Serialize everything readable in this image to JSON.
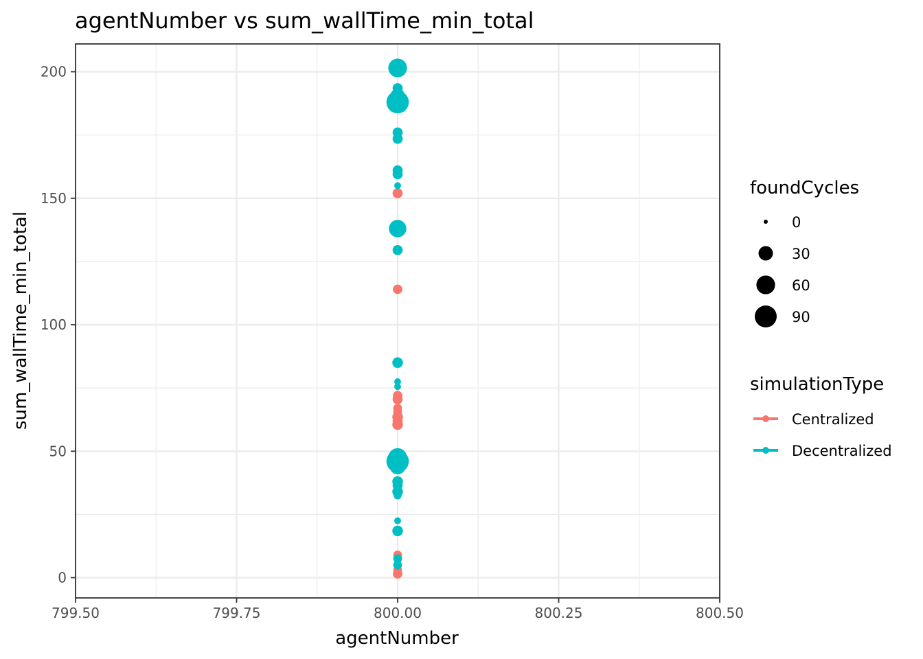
{
  "chart_data": {
    "type": "scatter",
    "title": "agentNumber  vs  sum_wallTime_min_total",
    "xlabel": "agentNumber",
    "ylabel": "sum_wallTime_min_total",
    "xlim": [
      799.5,
      800.5
    ],
    "ylim": [
      -8,
      211
    ],
    "x_ticks": [
      "799.50",
      "799.75",
      "800.00",
      "800.25",
      "800.50"
    ],
    "y_ticks": [
      "0",
      "50",
      "100",
      "150",
      "200"
    ],
    "grid": true,
    "legend_placement": "right",
    "size_legend": {
      "title": "foundCycles",
      "entries": [
        {
          "label": "0",
          "value": 0
        },
        {
          "label": "30",
          "value": 30
        },
        {
          "label": "60",
          "value": 60
        },
        {
          "label": "90",
          "value": 90
        }
      ]
    },
    "color_legend": {
      "title": "simulationType",
      "entries": [
        {
          "label": "Centralized",
          "color": "#F8766D"
        },
        {
          "label": "Decentralized",
          "color": "#00BFC4"
        }
      ]
    },
    "series": [
      {
        "name": "Centralized",
        "color": "#F8766D",
        "points": [
          {
            "x": 800,
            "y": 152,
            "size": 10
          },
          {
            "x": 800,
            "y": 114,
            "size": 8
          },
          {
            "x": 800,
            "y": 72,
            "size": 8
          },
          {
            "x": 800,
            "y": 70.5,
            "size": 10
          },
          {
            "x": 800,
            "y": 67,
            "size": 6
          },
          {
            "x": 800,
            "y": 65.5,
            "size": 6
          },
          {
            "x": 800,
            "y": 63.5,
            "size": 12
          },
          {
            "x": 800,
            "y": 62,
            "size": 10
          },
          {
            "x": 800,
            "y": 60.5,
            "size": 12
          },
          {
            "x": 800,
            "y": 9,
            "size": 6
          },
          {
            "x": 800,
            "y": 3,
            "size": 6
          },
          {
            "x": 800,
            "y": 1.5,
            "size": 8
          }
        ]
      },
      {
        "name": "Decentralized",
        "color": "#00BFC4",
        "points": [
          {
            "x": 800,
            "y": 201.5,
            "size": 60
          },
          {
            "x": 800,
            "y": 193.5,
            "size": 10
          },
          {
            "x": 800,
            "y": 190.5,
            "size": 30
          },
          {
            "x": 800,
            "y": 188,
            "size": 95
          },
          {
            "x": 800,
            "y": 176,
            "size": 10
          },
          {
            "x": 800,
            "y": 173.5,
            "size": 10
          },
          {
            "x": 800,
            "y": 161,
            "size": 10
          },
          {
            "x": 800,
            "y": 159.5,
            "size": 10
          },
          {
            "x": 800,
            "y": 155,
            "size": 2
          },
          {
            "x": 800,
            "y": 138,
            "size": 50
          },
          {
            "x": 800,
            "y": 129.5,
            "size": 10
          },
          {
            "x": 800,
            "y": 85,
            "size": 12
          },
          {
            "x": 800,
            "y": 77.5,
            "size": 2
          },
          {
            "x": 800,
            "y": 75.5,
            "size": 2
          },
          {
            "x": 800,
            "y": 47.5,
            "size": 60
          },
          {
            "x": 800,
            "y": 46,
            "size": 95
          },
          {
            "x": 800,
            "y": 44,
            "size": 40
          },
          {
            "x": 800,
            "y": 38,
            "size": 12
          },
          {
            "x": 800,
            "y": 36.5,
            "size": 10
          },
          {
            "x": 800,
            "y": 34,
            "size": 12
          },
          {
            "x": 800,
            "y": 32.5,
            "size": 4
          },
          {
            "x": 800,
            "y": 22.5,
            "size": 2
          },
          {
            "x": 800,
            "y": 18.5,
            "size": 12
          },
          {
            "x": 800,
            "y": 7.5,
            "size": 6
          },
          {
            "x": 800,
            "y": 5,
            "size": 6
          }
        ]
      }
    ]
  }
}
